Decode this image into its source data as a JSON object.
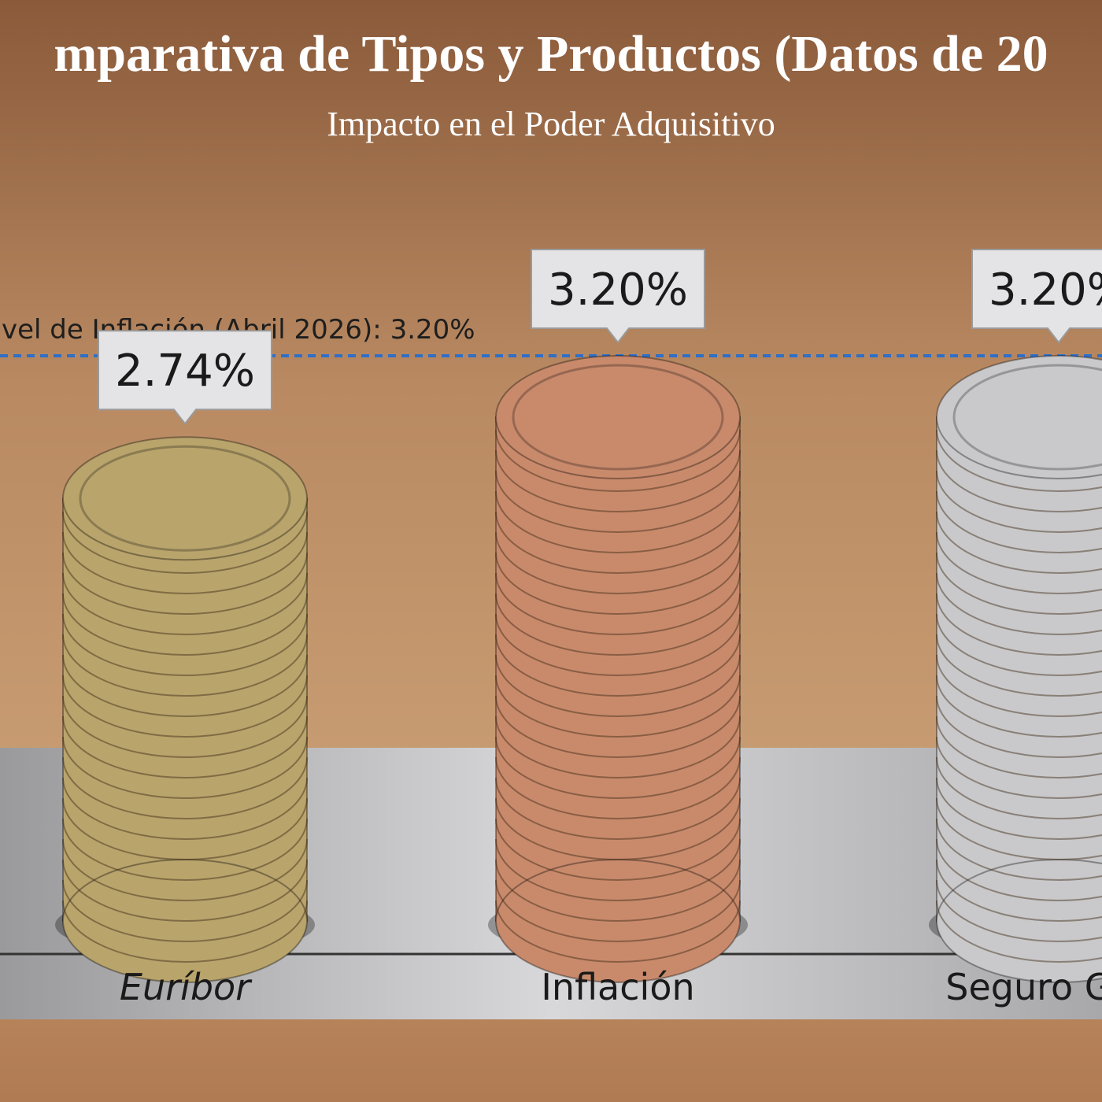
{
  "chart_data": {
    "type": "bar",
    "title": "mparativa de Tipos y Productos (Datos de 20",
    "subtitle": "Impacto en el Poder Adquisitivo",
    "categories": [
      "Euríbor",
      "Inflación",
      "Seguro Gara"
    ],
    "values": [
      2.74,
      3.2,
      3.2
    ],
    "value_labels": [
      "2.74%",
      "3.20%",
      "3.20%"
    ],
    "colors": [
      "#b9a46c",
      "#c98a6c",
      "#c9c9cb"
    ],
    "reference_line": {
      "value": 3.2,
      "label": "vel de Inflación (Abril 2026): 3.20%",
      "color": "#2f6fc8"
    }
  }
}
